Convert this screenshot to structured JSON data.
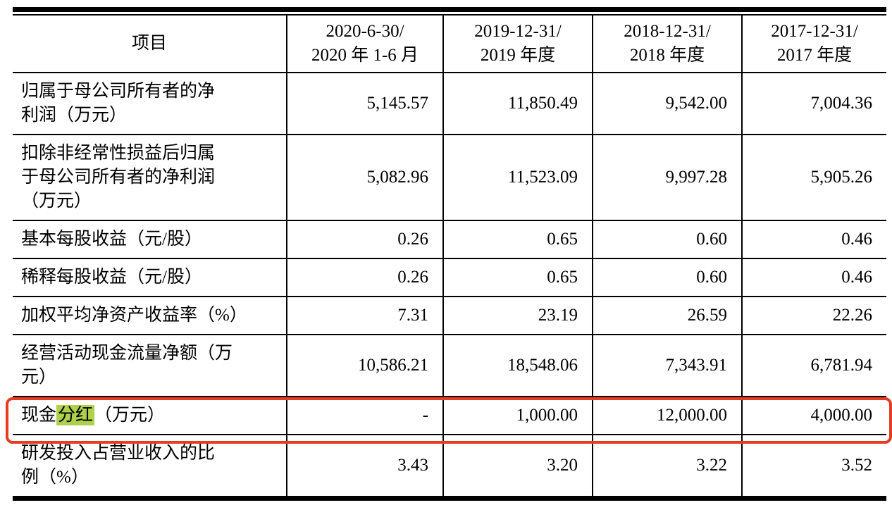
{
  "colors": {
    "annotation_box": "#e73b22",
    "keyword_highlight": "#aed04b"
  },
  "table": {
    "item_header": "项目",
    "periods": [
      "2020-6-30/\n2020 年 1-6 月",
      "2019-12-31/\n2019 年度",
      "2018-12-31/\n2018 年度",
      "2017-12-31/\n2017 年度"
    ],
    "rows": [
      {
        "label": "归属于母公司所有者的净\n利润（万元）",
        "values": [
          "5,145.57",
          "11,850.49",
          "9,542.00",
          "7,004.36"
        ]
      },
      {
        "label": "扣除非经常性损益后归属\n于母公司所有者的净利润\n（万元）",
        "values": [
          "5,082.96",
          "11,523.09",
          "9,997.28",
          "5,905.26"
        ]
      },
      {
        "label": "基本每股收益（元/股）",
        "values": [
          "0.26",
          "0.65",
          "0.60",
          "0.46"
        ]
      },
      {
        "label": "稀释每股收益（元/股）",
        "values": [
          "0.26",
          "0.65",
          "0.60",
          "0.46"
        ]
      },
      {
        "label": "加权平均净资产收益率（%）",
        "values": [
          "7.31",
          "23.19",
          "26.59",
          "22.26"
        ]
      },
      {
        "label": "经营活动现金流量净额（万\n元）",
        "values": [
          "10,586.21",
          "18,548.06",
          "7,343.91",
          "6,781.94"
        ]
      },
      {
        "label_prefix": "现金",
        "label_highlight": "分红",
        "label_suffix": "（万元）",
        "annotated": true,
        "values": [
          "-",
          "1,000.00",
          "12,000.00",
          "4,000.00"
        ]
      },
      {
        "label": "研发投入占营业收入的比\n例（%）",
        "values": [
          "3.43",
          "3.20",
          "3.22",
          "3.52"
        ]
      }
    ]
  }
}
